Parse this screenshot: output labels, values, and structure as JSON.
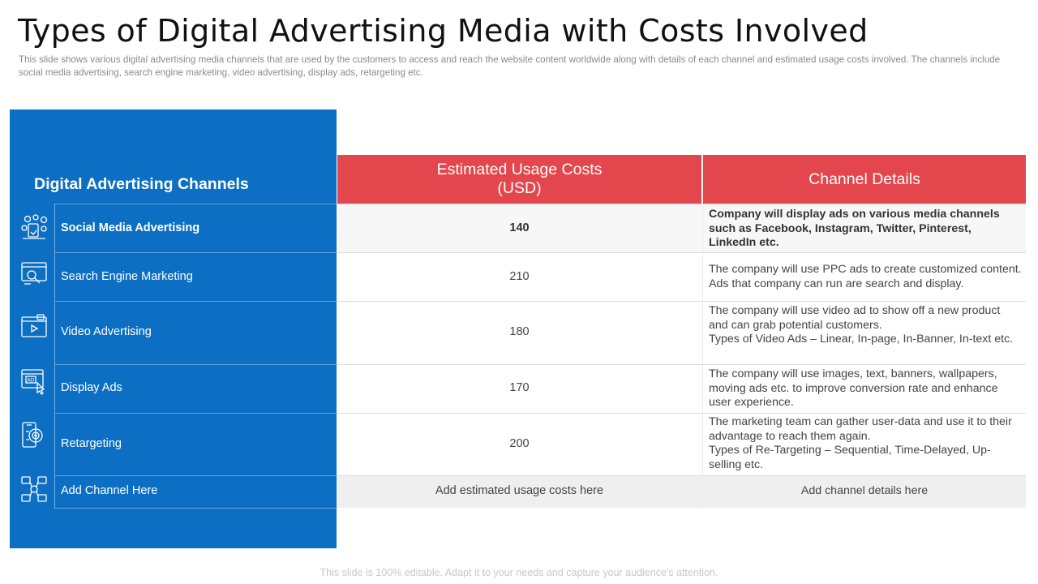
{
  "header": {
    "title": "Types of Digital Advertising Media with Costs Involved",
    "subtitle": "This slide shows various digital advertising media channels that are used by the customers to access and reach the website content worldwide along with details of each channel and estimated usage costs involved. The channels include social media advertising, search engine marketing, video advertising, display ads, retargeting etc."
  },
  "table": {
    "channel_header": "Digital Advertising Channels",
    "cost_header_line1": "Estimated Usage Costs",
    "cost_header_line2": "(USD)",
    "details_header": "Channel Details",
    "rows": [
      {
        "channel": "Social Media Advertising",
        "icon": "social-media-icon",
        "cost": "140",
        "details": "Company will display ads on various media channels such as Facebook, Instagram, Twitter, Pinterest, LinkedIn etc."
      },
      {
        "channel": "Search Engine Marketing",
        "icon": "search-engine-icon",
        "cost": "210",
        "details": "The company will use PPC ads to create customized content. Ads that company can run are search and display."
      },
      {
        "channel": "Video Advertising",
        "icon": "video-icon",
        "cost": "180",
        "details_line1": "The company will use video ad to show off a new product and can grab potential customers.",
        "details_line2": "Types of Video Ads – Linear, In-page, In-Banner, In-text etc."
      },
      {
        "channel": "Display Ads",
        "icon": "display-ad-icon",
        "cost": "170",
        "details": "The company will use images, text, banners, wallpapers, moving ads etc. to improve conversion rate and enhance user experience."
      },
      {
        "channel": "Retargeting",
        "icon": "retargeting-icon",
        "cost": "200",
        "details_line1": "The marketing team can gather user-data and use it to their advantage to reach them again.",
        "details_line2": "Types of Re-Targeting – Sequential, Time-Delayed, Up-selling etc."
      },
      {
        "channel": "Add Channel Here",
        "icon": "network-icon",
        "cost": "Add estimated usage costs here",
        "details": "Add channel details here"
      }
    ]
  },
  "footer": "This slide is 100% editable. Adapt it to your needs and capture your audience's attention.",
  "colors": {
    "panel_blue": "#0d6fc4",
    "header_red": "#e3474d",
    "row_alt_gray": "#f7f7f7",
    "last_row_gray": "#efefef"
  }
}
